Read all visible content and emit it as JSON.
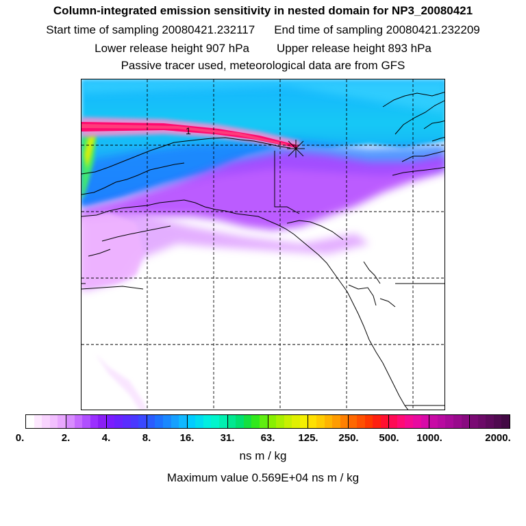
{
  "header": {
    "title": "Column-integrated emission sensitivity in nested domain for NP3_20080421",
    "start_label": "Start time of sampling 20080421.232117",
    "end_label": "End time of sampling 20080421.232209",
    "lower_label": "Lower release height  907 hPa",
    "upper_label": "Upper release height  893 hPa",
    "note": "Passive tracer used, meteorological data are from GFS"
  },
  "map": {
    "release_marker_label": "1",
    "plume_colors": {
      "high": "#ff1493",
      "core": "#ff0a6e",
      "edge": "#ffd700",
      "mid": "#00e5ff",
      "outer": "#1ea0ff",
      "low": "#b23cff",
      "faint": "#f0b4ff"
    }
  },
  "colorbar": {
    "tick_labels": [
      "0.",
      "2.",
      "4.",
      "8.",
      "16.",
      "31.",
      "63.",
      "125.",
      "250.",
      "500.",
      "1000.",
      "2000."
    ],
    "segments": [
      [
        "#ffffff",
        "#fde8ff",
        "#f9d4ff",
        "#f2bfff",
        "#e9a8ff"
      ],
      [
        "#d88cff",
        "#c66bff",
        "#b050ff",
        "#9b30ff",
        "#8a1ff5"
      ],
      [
        "#7a1cff",
        "#6a22ff",
        "#5a2cff",
        "#4a38ff",
        "#3a48ff"
      ],
      [
        "#2a5cff",
        "#1e72ff",
        "#1a88ff",
        "#16a0ff",
        "#10b8ff"
      ],
      [
        "#00ccff",
        "#00dcf0",
        "#00eee0",
        "#00f5cc",
        "#00f0b0"
      ],
      [
        "#00e890",
        "#00e070",
        "#14e040",
        "#30e81c",
        "#60ee10"
      ],
      [
        "#88f000",
        "#aaf000",
        "#c8f000",
        "#e0f000",
        "#f5f000"
      ],
      [
        "#ffe000",
        "#ffcc00",
        "#ffb400",
        "#ff9c00",
        "#ff8000"
      ],
      [
        "#ff6800",
        "#ff5000",
        "#ff3800",
        "#ff2010",
        "#ff1030"
      ],
      [
        "#ff0a55",
        "#ff0a75",
        "#f50a90",
        "#e80aa0",
        "#d80aa8"
      ],
      [
        "#c80aa5",
        "#b80aa0",
        "#a80a98",
        "#980a8c",
        "#880a80"
      ],
      [
        "#7a0a74",
        "#6c0a68",
        "#5e0a5c",
        "#500a50",
        "#420a44"
      ]
    ],
    "units": "ns m / kg",
    "max_value_text": "Maximum value  0.569E+04 ns m / kg"
  }
}
